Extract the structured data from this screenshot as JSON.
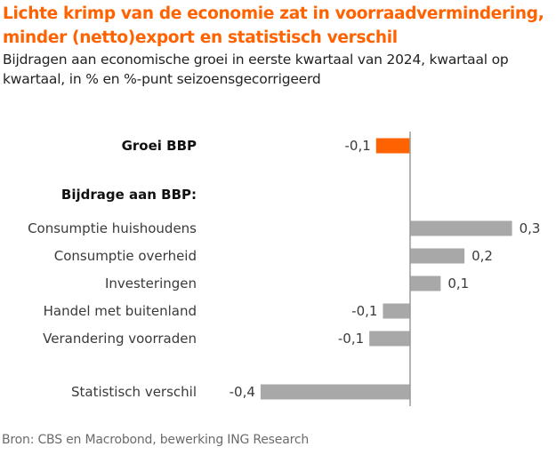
{
  "chart_data": {
    "type": "bar",
    "orientation": "horizontal",
    "title": "Lichte krimp van de economie zat in voorraadvermindering, minder (netto)export en statistisch verschil",
    "subtitle": "Bijdragen aan economische groei in eerste kwartaal van 2024, kwartaal op kwartaal, in % en %-punt seizoensgecorrigeerd",
    "source": "Bron: CBS en Macrobond, bewerking ING Research",
    "section_label": "Bijdrage aan BBP:",
    "xlabel": "",
    "ylabel": "",
    "xlim": [
      -0.45,
      0.32
    ],
    "grid": false,
    "legend": "none",
    "colors": {
      "highlight": "#ff6200",
      "default": "#a8a8a8",
      "axis": "#9a9a9a"
    },
    "categories": [
      "Groei BBP",
      "Consumptie huishoudens",
      "Consumptie overheid",
      "Investeringen",
      "Handel met buitenland",
      "Verandering voorraden",
      "Statistisch verschil"
    ],
    "values": [
      -0.1,
      0.3,
      0.16,
      0.09,
      -0.08,
      -0.12,
      -0.44
    ],
    "labels": [
      "-0,1",
      "0,3",
      "0,2",
      "0,1",
      "-0,1",
      "-0,1",
      "-0,4"
    ],
    "highlight": [
      true,
      false,
      false,
      false,
      false,
      false,
      false
    ],
    "bold": [
      true,
      false,
      false,
      false,
      false,
      false,
      false
    ]
  }
}
